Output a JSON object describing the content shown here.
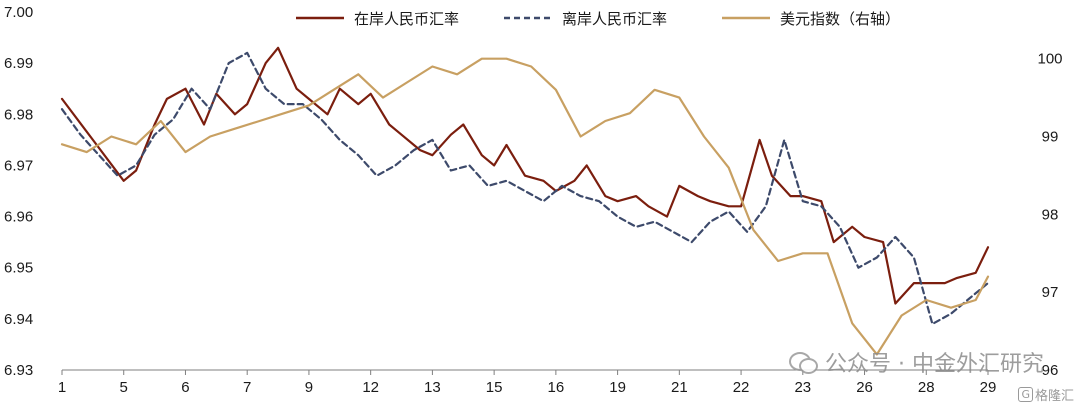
{
  "chart_data": {
    "type": "line",
    "title": "",
    "xlabel": "",
    "ylabel": "",
    "y2label": "",
    "x_tick_labels": [
      "1",
      "5",
      "6",
      "7",
      "9",
      "12",
      "13",
      "15",
      "16",
      "19",
      "21",
      "22",
      "23",
      "26",
      "28",
      "29"
    ],
    "ylim": [
      6.93,
      7.0
    ],
    "y_ticks": [
      "6.93",
      "6.94",
      "6.95",
      "6.96",
      "6.97",
      "6.98",
      "6.99",
      "7.00"
    ],
    "y2lim": [
      96,
      100.6
    ],
    "y2_ticks": [
      "96",
      "97",
      "98",
      "99",
      "100"
    ],
    "grid": false,
    "legend_position": "top",
    "legend": [
      {
        "label": "在岸人民币汇率",
        "style": "solid",
        "color": "#7b1e0e"
      },
      {
        "label": "离岸人民币汇率",
        "style": "dashed",
        "color": "#3d4a6b"
      },
      {
        "label": "美元指数（右轴）",
        "style": "solid",
        "color": "#c8a062"
      }
    ],
    "series": [
      {
        "name": "在岸人民币汇率",
        "axis": "left",
        "color": "#7b1e0e",
        "x": [
          0,
          0.5,
          1,
          1.2,
          1.5,
          1.7,
          2,
          2.3,
          2.5,
          2.8,
          3,
          3.3,
          3.5,
          3.8,
          4,
          4.3,
          4.5,
          4.8,
          5,
          5.3,
          5.5,
          5.8,
          6,
          6.3,
          6.5,
          6.8,
          7,
          7.2,
          7.5,
          7.8,
          8,
          8.3,
          8.5,
          8.8,
          9,
          9.3,
          9.5,
          9.8,
          10,
          10.3,
          10.5,
          10.8,
          11,
          11.3,
          11.5,
          11.8,
          12,
          12.3,
          12.5,
          12.8,
          13,
          13.3,
          13.5,
          13.8,
          14,
          14.3,
          14.5,
          14.8,
          15
        ],
        "values": [
          6.983,
          6.975,
          6.967,
          6.969,
          6.978,
          6.983,
          6.985,
          6.978,
          6.984,
          6.98,
          6.982,
          6.99,
          6.993,
          6.985,
          6.983,
          6.98,
          6.985,
          6.982,
          6.984,
          6.978,
          6.976,
          6.973,
          6.972,
          6.976,
          6.978,
          6.972,
          6.97,
          6.974,
          6.968,
          6.967,
          6.965,
          6.967,
          6.97,
          6.964,
          6.963,
          6.964,
          6.962,
          6.96,
          6.966,
          6.964,
          6.963,
          6.962,
          6.962,
          6.975,
          6.968,
          6.964,
          6.964,
          6.963,
          6.955,
          6.958,
          6.956,
          6.955,
          6.943,
          6.947,
          6.947,
          6.947,
          6.948,
          6.949,
          6.954
        ]
      },
      {
        "name": "离岸人民币汇率",
        "axis": "left",
        "color": "#3d4a6b",
        "x": [
          0,
          0.3,
          0.6,
          0.9,
          1.2,
          1.5,
          1.8,
          2.1,
          2.4,
          2.7,
          3,
          3.3,
          3.6,
          3.9,
          4.2,
          4.5,
          4.8,
          5.1,
          5.4,
          5.7,
          6,
          6.3,
          6.6,
          6.9,
          7.2,
          7.5,
          7.8,
          8.1,
          8.4,
          8.7,
          9,
          9.3,
          9.6,
          9.9,
          10.2,
          10.5,
          10.8,
          11.1,
          11.4,
          11.7,
          12,
          12.3,
          12.6,
          12.9,
          13.2,
          13.5,
          13.8,
          14.1,
          14.4,
          14.7,
          15
        ],
        "values": [
          6.981,
          6.976,
          6.972,
          6.968,
          6.97,
          6.976,
          6.979,
          6.985,
          6.981,
          6.99,
          6.992,
          6.985,
          6.982,
          6.982,
          6.979,
          6.975,
          6.972,
          6.968,
          6.97,
          6.973,
          6.975,
          6.969,
          6.97,
          6.966,
          6.967,
          6.965,
          6.963,
          6.966,
          6.964,
          6.963,
          6.96,
          6.958,
          6.959,
          6.957,
          6.955,
          6.959,
          6.961,
          6.957,
          6.962,
          6.975,
          6.963,
          6.962,
          6.958,
          6.95,
          6.952,
          6.956,
          6.952,
          6.939,
          6.941,
          6.944,
          6.947
        ]
      },
      {
        "name": "美元指数（右轴）",
        "axis": "right",
        "color": "#c8a062",
        "x": [
          0,
          0.4,
          0.8,
          1.2,
          1.6,
          2,
          2.4,
          2.8,
          3.2,
          3.6,
          4,
          4.4,
          4.8,
          5.2,
          5.6,
          6,
          6.4,
          6.8,
          7.2,
          7.6,
          8,
          8.4,
          8.8,
          9.2,
          9.6,
          10,
          10.4,
          10.8,
          11.2,
          11.6,
          12,
          12.4,
          12.8,
          13.2,
          13.6,
          14,
          14.4,
          14.8,
          15
        ],
        "values": [
          98.9,
          98.8,
          99.0,
          98.9,
          99.2,
          98.8,
          99.0,
          99.1,
          99.2,
          99.3,
          99.4,
          99.6,
          99.8,
          99.5,
          99.7,
          99.9,
          99.8,
          100.0,
          100.0,
          99.9,
          99.6,
          99.0,
          99.2,
          99.3,
          99.6,
          99.5,
          99.0,
          98.6,
          97.8,
          97.4,
          97.5,
          97.5,
          96.6,
          96.2,
          96.7,
          96.9,
          96.8,
          96.9,
          97.2
        ]
      }
    ]
  },
  "watermark": {
    "text": "公众号 · 中金外汇研究",
    "badge": "G",
    "badge_text": "格隆汇"
  }
}
